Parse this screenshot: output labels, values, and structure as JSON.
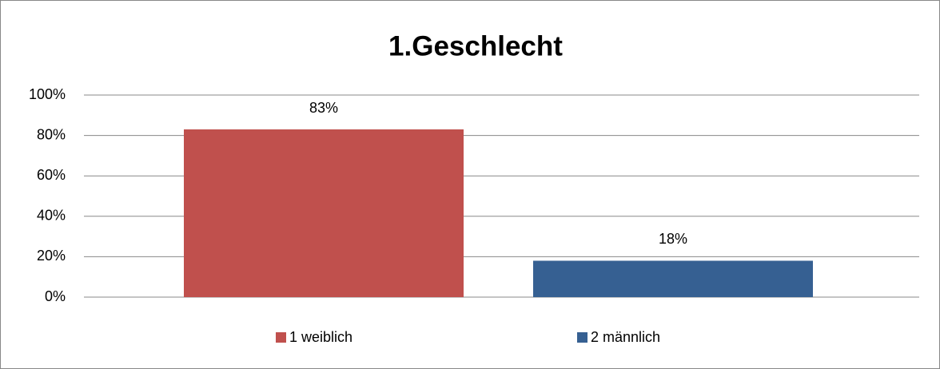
{
  "chart_data": {
    "type": "bar",
    "title": "1.Geschlecht",
    "categories": [
      null
    ],
    "series": [
      {
        "name": "1 weiblich",
        "color": "#c0504d",
        "values": [
          83
        ],
        "value_labels": [
          "83%"
        ]
      },
      {
        "name": "2 männlich",
        "color": "#366092",
        "values": [
          18
        ],
        "value_labels": [
          "18%"
        ]
      }
    ],
    "ylim": [
      0,
      100
    ],
    "yticks": [
      {
        "value": 0,
        "label": "0%"
      },
      {
        "value": 20,
        "label": "20%"
      },
      {
        "value": 40,
        "label": "40%"
      },
      {
        "value": 60,
        "label": "60%"
      },
      {
        "value": 80,
        "label": "80%"
      },
      {
        "value": 100,
        "label": "100%"
      }
    ],
    "grid": true,
    "legend": "bottom"
  }
}
